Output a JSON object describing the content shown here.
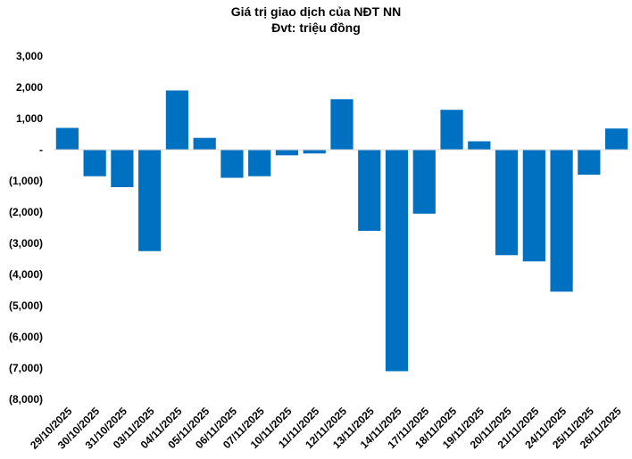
{
  "chart_data": {
    "type": "bar",
    "title": "Giá trị giao dịch của NĐT NN",
    "subtitle": "Đvt: triệu đồng",
    "categories": [
      "29/10/2025",
      "30/10/2025",
      "31/10/2025",
      "03/11/2025",
      "04/11/2025",
      "05/11/2025",
      "06/11/2025",
      "07/11/2025",
      "10/11/2025",
      "11/11/2025",
      "12/11/2025",
      "13/11/2025",
      "14/11/2025",
      "17/11/2025",
      "18/11/2025",
      "19/11/2025",
      "20/11/2025",
      "21/11/2025",
      "24/11/2025",
      "25/11/2025",
      "26/11/2025"
    ],
    "values": [
      700,
      -850,
      -1200,
      -3250,
      1900,
      380,
      -900,
      -850,
      -180,
      -120,
      1620,
      -2600,
      -7100,
      -2050,
      1280,
      270,
      -3380,
      -3580,
      -4550,
      -800,
      680
    ],
    "ylim": [
      -8000,
      3000
    ],
    "yticks": [
      3000,
      2000,
      1000,
      0,
      -1000,
      -2000,
      -3000,
      -4000,
      -5000,
      -6000,
      -7000,
      -8000
    ],
    "ytick_labels": [
      "3,000",
      "2,000",
      "1,000",
      "-",
      "(1,000)",
      "(2,000)",
      "(3,000)",
      "(4,000)",
      "(5,000)",
      "(6,000)",
      "(7,000)",
      "(8,000)"
    ],
    "bar_color": "#0070C0",
    "grid": false,
    "legend": "none"
  }
}
